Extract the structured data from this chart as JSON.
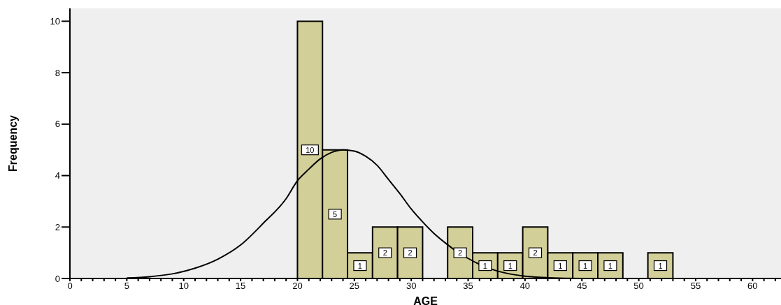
{
  "chart_data": {
    "type": "histogram",
    "xlabel": "AGE",
    "ylabel": "Frequency",
    "bins": [
      20,
      22.2,
      24.4,
      26.6,
      28.8,
      31,
      33.2,
      35.4,
      37.6,
      39.8,
      42,
      44.2,
      46.4,
      48.6,
      50.8,
      53
    ],
    "values": [
      10,
      5,
      1,
      2,
      2,
      0,
      2,
      1,
      1,
      2,
      1,
      1,
      1,
      0,
      1
    ],
    "value_labels": [
      "10",
      "5",
      "1",
      "2",
      "2",
      null,
      "2",
      "1",
      "1",
      "2",
      "1",
      "1",
      "1",
      null,
      "1"
    ],
    "color": "#d3cf98",
    "series": [
      {
        "type": "line",
        "color": "#000000",
        "x": [
          5,
          7,
          9,
          11,
          13,
          15,
          17,
          19,
          20,
          21,
          22,
          23,
          24,
          25,
          26,
          27,
          28,
          29,
          30,
          31,
          32,
          33,
          34,
          35,
          36,
          37,
          38,
          40,
          42,
          45,
          50,
          55,
          62.5
        ],
        "values": [
          0.02,
          0.07,
          0.18,
          0.4,
          0.75,
          1.3,
          2.15,
          3.1,
          3.8,
          4.25,
          4.65,
          4.9,
          5,
          4.95,
          4.75,
          4.4,
          3.85,
          3.3,
          2.7,
          2.2,
          1.75,
          1.38,
          1.05,
          0.78,
          0.55,
          0.37,
          0.24,
          0.09,
          0.03,
          0,
          0,
          0,
          0
        ]
      }
    ],
    "xlim": [
      0,
      62.5
    ],
    "xticks": [
      0,
      {
        "value": 1,
        "label": null
      },
      {
        "value": 2,
        "label": null
      },
      {
        "value": 3,
        "label": null
      },
      {
        "value": 4,
        "label": null
      },
      5,
      {
        "value": 6,
        "label": null
      },
      {
        "value": 7,
        "label": null
      },
      {
        "value": 8,
        "label": null
      },
      {
        "value": 9,
        "label": null
      },
      10,
      {
        "value": 11,
        "label": null
      },
      {
        "value": 12,
        "label": null
      },
      {
        "value": 13,
        "label": null
      },
      {
        "value": 14,
        "label": null
      },
      15,
      {
        "value": 16,
        "label": null
      },
      {
        "value": 17,
        "label": null
      },
      {
        "value": 18,
        "label": null
      },
      {
        "value": 19,
        "label": null
      },
      20,
      {
        "value": 21,
        "label": null
      },
      {
        "value": 22,
        "label": null
      },
      {
        "value": 23,
        "label": null
      },
      {
        "value": 24,
        "label": null
      },
      25,
      {
        "value": 26,
        "label": null
      },
      {
        "value": 27,
        "label": null
      },
      {
        "value": 28,
        "label": null
      },
      {
        "value": 29,
        "label": null
      },
      30,
      {
        "value": 31,
        "label": null
      },
      {
        "value": 32,
        "label": null
      },
      {
        "value": 33,
        "label": null
      },
      {
        "value": 34,
        "label": null
      },
      35,
      {
        "value": 36,
        "label": null
      },
      {
        "value": 37,
        "label": null
      },
      {
        "value": 38,
        "label": null
      },
      {
        "value": 39,
        "label": null
      },
      40,
      {
        "value": 41,
        "label": null
      },
      {
        "value": 42,
        "label": null
      },
      {
        "value": 43,
        "label": null
      },
      {
        "value": 44,
        "label": null
      },
      45,
      {
        "value": 46,
        "label": null
      },
      {
        "value": 47,
        "label": null
      },
      {
        "value": 48,
        "label": null
      },
      {
        "value": 49,
        "label": null
      },
      50,
      {
        "value": 51,
        "label": null
      },
      {
        "value": 52,
        "label": null
      },
      {
        "value": 53,
        "label": null
      },
      {
        "value": 54,
        "label": null
      },
      55,
      {
        "value": 56,
        "label": null
      },
      {
        "value": 57,
        "label": null
      },
      {
        "value": 58,
        "label": null
      },
      {
        "value": 59,
        "label": null
      },
      60,
      {
        "value": 61,
        "label": null
      },
      {
        "value": 62,
        "label": null
      }
    ],
    "ylim": [
      0,
      10.5
    ],
    "yticks": [
      0,
      2,
      4,
      6,
      8,
      10
    ],
    "grid": false,
    "marker": "none",
    "line_style": "solid"
  }
}
